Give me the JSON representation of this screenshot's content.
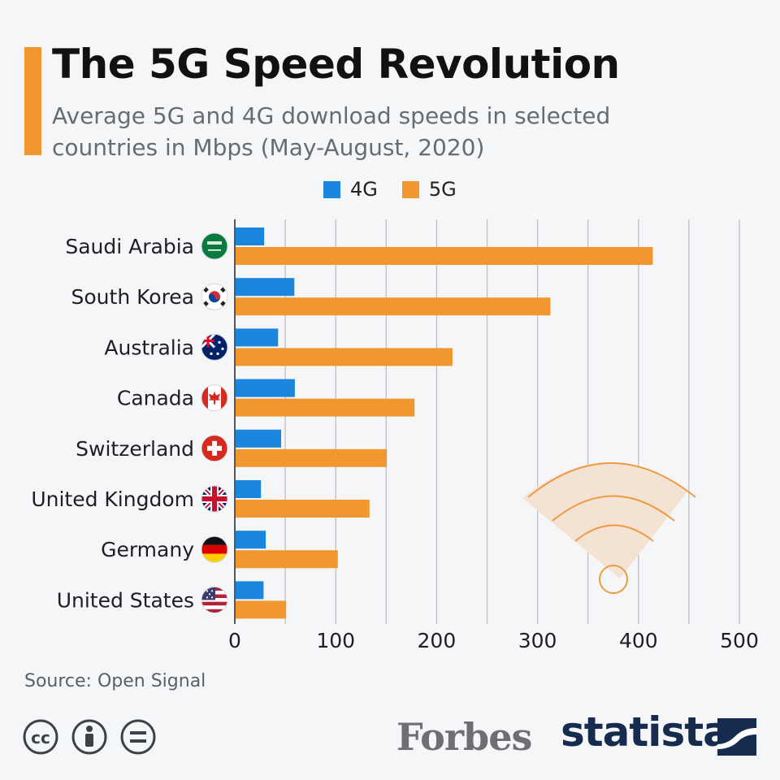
{
  "header": {
    "title": "The 5G Speed Revolution",
    "subtitle": "Average 5G and 4G download speeds in selected countries in Mbps (May-August, 2020)"
  },
  "colors": {
    "accent": "#f0972f",
    "series_4g": "#1a86dd",
    "series_5g": "#f0972f",
    "grid": "#b9bcc0",
    "brand_dark": "#152c4e"
  },
  "flag_icons": [
    "saudi-arabia-flag-icon",
    "south-korea-flag-icon",
    "australia-flag-icon",
    "canada-flag-icon",
    "switzerland-flag-icon",
    "united-kingdom-flag-icon",
    "germany-flag-icon",
    "united-states-flag-icon"
  ],
  "chart_data": {
    "type": "bar",
    "orientation": "horizontal",
    "categories": [
      "Saudi Arabia",
      "South Korea",
      "Australia",
      "Canada",
      "Switzerland",
      "United Kingdom",
      "Germany",
      "United States"
    ],
    "series": [
      {
        "name": "4G",
        "values": [
          29.1,
          59.0,
          42.9,
          59.5,
          45.9,
          25.9,
          30.7,
          28.5
        ]
      },
      {
        "name": "5G",
        "values": [
          414.2,
          312.7,
          215.7,
          178.1,
          150.7,
          133.5,
          102.1,
          50.9
        ]
      }
    ],
    "xlim": [
      0,
      500
    ],
    "xticks": [
      0,
      100,
      200,
      300,
      400,
      500
    ],
    "grid": true,
    "legend_position": "top-center"
  },
  "footer": {
    "source": "Source: Open Signal",
    "forbes": "Forbes",
    "statista": "statista"
  }
}
